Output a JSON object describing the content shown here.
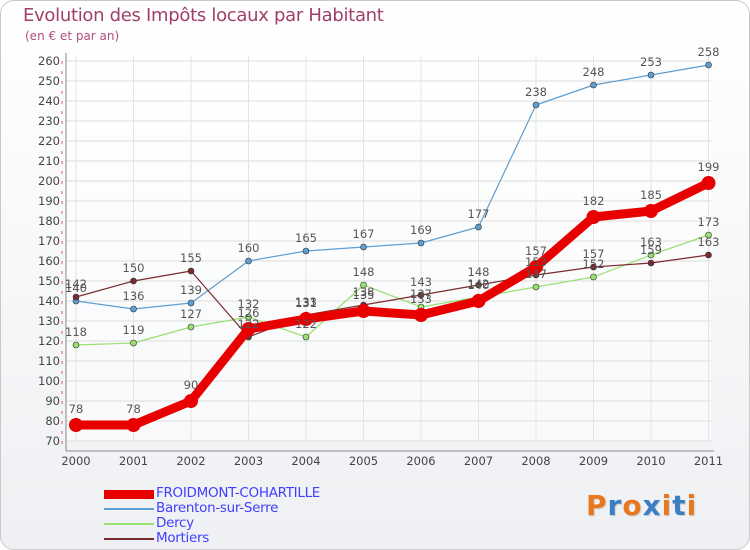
{
  "title": "Evolution des Impôts locaux par Habitant",
  "subtitle": "(en € et par an)",
  "logo": {
    "text": "Proxiti",
    "letter_colors": [
      "#e87820",
      "#3a7ec4",
      "#e87820",
      "#3a7ec4",
      "#e87820",
      "#3a7ec4",
      "#e87820"
    ]
  },
  "chart_data": {
    "type": "line",
    "title": "Evolution des Impôts locaux par Habitant",
    "subtitle": "(en € et par an)",
    "x": [
      "2000",
      "2001",
      "2002",
      "2003",
      "2004",
      "2005",
      "2006",
      "2007",
      "2008",
      "2009",
      "2010",
      "2011"
    ],
    "ylim": [
      70,
      260
    ],
    "yticks": [
      70,
      80,
      90,
      100,
      110,
      120,
      130,
      140,
      150,
      160,
      170,
      180,
      190,
      200,
      210,
      220,
      230,
      240,
      250,
      260
    ],
    "grid": true,
    "legend_position": "bottom-left",
    "series": [
      {
        "name": "FROIDMONT-COHARTILLE",
        "color": "#e80000",
        "line_width": 9,
        "marker_radius": 7,
        "values": [
          78,
          78,
          90,
          126,
          131,
          135,
          133,
          140,
          157,
          182,
          185,
          199
        ]
      },
      {
        "name": "Barenton-sur-Serre",
        "color": "#5e9ed0",
        "line_width": 1.2,
        "marker_radius": 3,
        "values": [
          140,
          136,
          139,
          160,
          165,
          167,
          169,
          177,
          238,
          248,
          253,
          258
        ]
      },
      {
        "name": "Dercy",
        "color": "#98e070",
        "line_width": 1.2,
        "marker_radius": 3,
        "values": [
          118,
          119,
          127,
          132,
          122,
          148,
          137,
          142,
          147,
          152,
          163,
          173
        ]
      },
      {
        "name": "Mortiers",
        "color": "#7a2a30",
        "line_width": 1.2,
        "marker_radius": 3,
        "values": [
          142,
          150,
          155,
          122,
          133,
          138,
          143,
          148,
          153,
          157,
          159,
          163
        ]
      }
    ]
  }
}
